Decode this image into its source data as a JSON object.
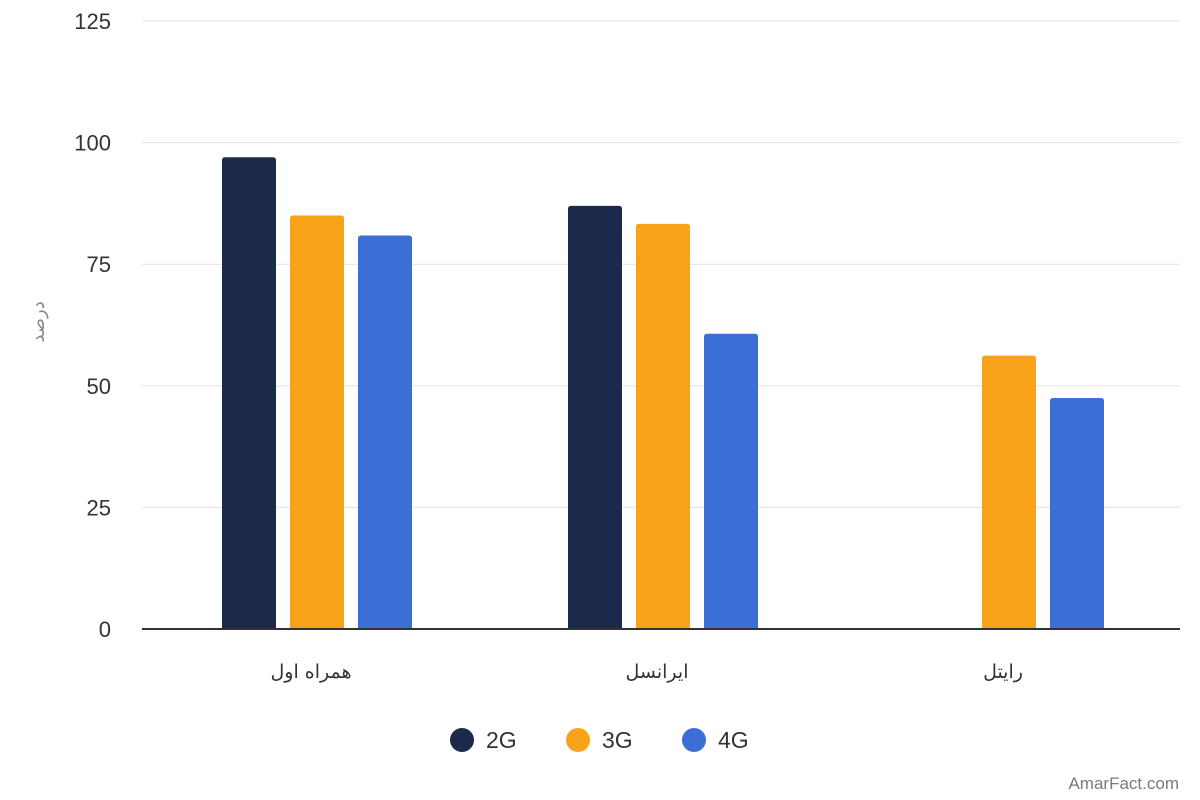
{
  "chart_data": {
    "type": "bar",
    "categories": [
      "همراه اول",
      "ایرانسل",
      "رایتل"
    ],
    "series": [
      {
        "name": "2G",
        "color": "#1b2a4a",
        "values": [
          97,
          87,
          null
        ]
      },
      {
        "name": "3G",
        "color": "#f8a21a",
        "values": [
          85,
          83.3,
          56.2
        ]
      },
      {
        "name": "4G",
        "color": "#3c6fd6",
        "values": [
          80.9,
          60.7,
          47.5
        ]
      }
    ],
    "ylabel": "درصد",
    "ylim": [
      0,
      125
    ],
    "yticks": [
      0,
      25,
      50,
      75,
      100,
      125
    ],
    "grid": true,
    "legend_position": "bottom"
  },
  "watermark": "AmarFact.com"
}
